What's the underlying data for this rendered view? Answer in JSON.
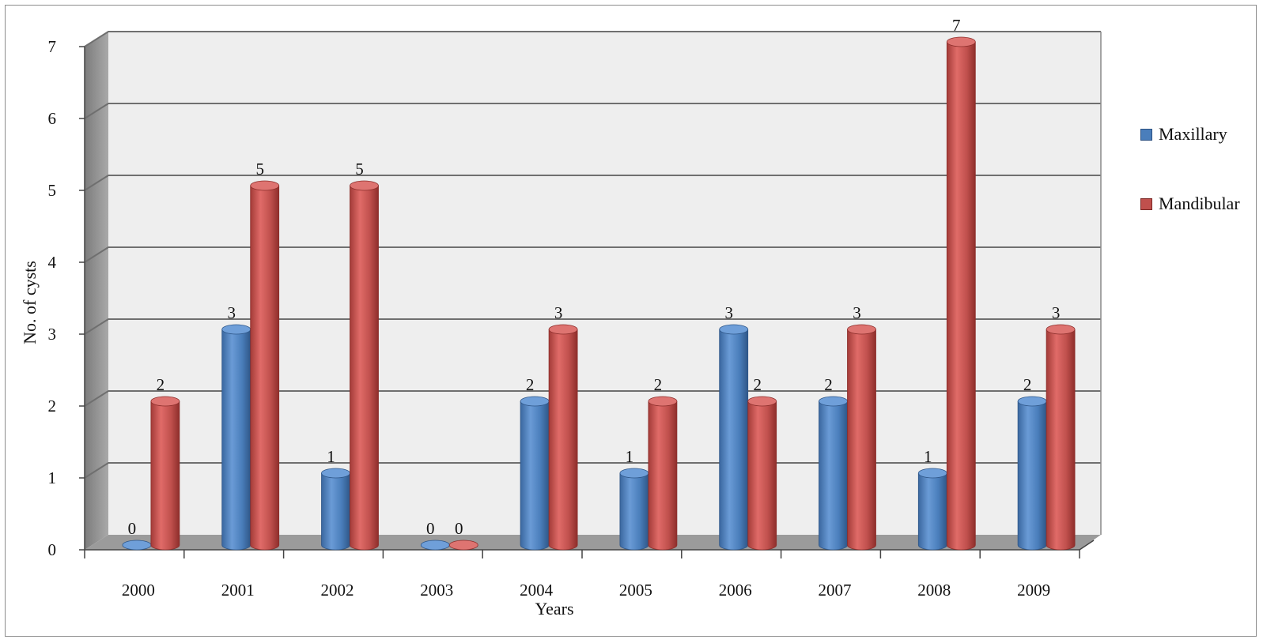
{
  "chart_data": {
    "type": "bar",
    "title": "",
    "xlabel": "Years",
    "ylabel": "No. of cysts",
    "categories": [
      "2000",
      "2001",
      "2002",
      "2003",
      "2004",
      "2005",
      "2006",
      "2007",
      "2008",
      "2009"
    ],
    "series": [
      {
        "name": "Maxillary",
        "color": "#4a7ebb",
        "values": [
          0,
          3,
          1,
          0,
          2,
          1,
          3,
          2,
          1,
          2
        ]
      },
      {
        "name": "Mandibular",
        "color": "#c0504d",
        "values": [
          2,
          5,
          5,
          0,
          3,
          2,
          2,
          3,
          7,
          3
        ]
      }
    ],
    "ylim": [
      0,
      7
    ],
    "yticks": [
      "0",
      "1",
      "2",
      "3",
      "4",
      "5",
      "6",
      "7"
    ],
    "grid": true,
    "style": "3d-cylinder",
    "legend_position": "right",
    "data_labels": true
  }
}
